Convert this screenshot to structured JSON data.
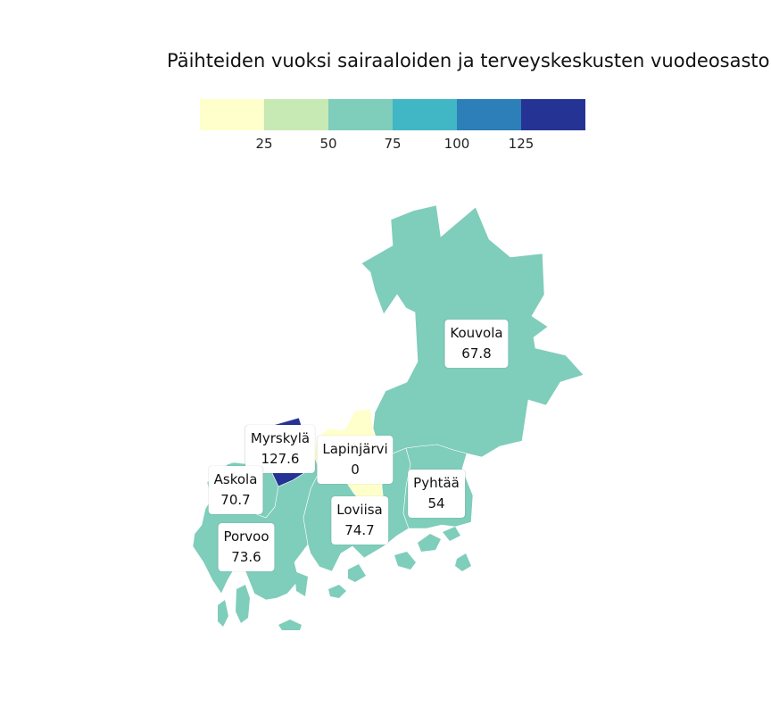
{
  "title": "Päihteiden vuoksi sairaaloiden ja terveyskeskusten vuodeosastoil",
  "legend": {
    "bins": [
      {
        "color": "#ffffcc"
      },
      {
        "color": "#c7e9b4"
      },
      {
        "color": "#7fcdbb"
      },
      {
        "color": "#41b6c4"
      },
      {
        "color": "#2c7fb8"
      },
      {
        "color": "#253494"
      }
    ],
    "ticks": [
      "25",
      "50",
      "75",
      "100",
      "125"
    ],
    "tick_values": [
      25,
      50,
      75,
      100,
      125
    ],
    "range": [
      0,
      150
    ]
  },
  "regions": [
    {
      "name": "Kouvola",
      "value": "67.8",
      "color": "#7fcdbb"
    },
    {
      "name": "Lapinjärvi",
      "value": "0",
      "color": "#ffffcc"
    },
    {
      "name": "Myrskylä",
      "value": "127.6",
      "color": "#253494"
    },
    {
      "name": "Askola",
      "value": "70.7",
      "color": "#7fcdbb"
    },
    {
      "name": "Porvoo",
      "value": "73.6",
      "color": "#7fcdbb"
    },
    {
      "name": "Loviisa",
      "value": "74.7",
      "color": "#7fcdbb"
    },
    {
      "name": "Pyhtää",
      "value": "54",
      "color": "#7fcdbb"
    }
  ]
}
